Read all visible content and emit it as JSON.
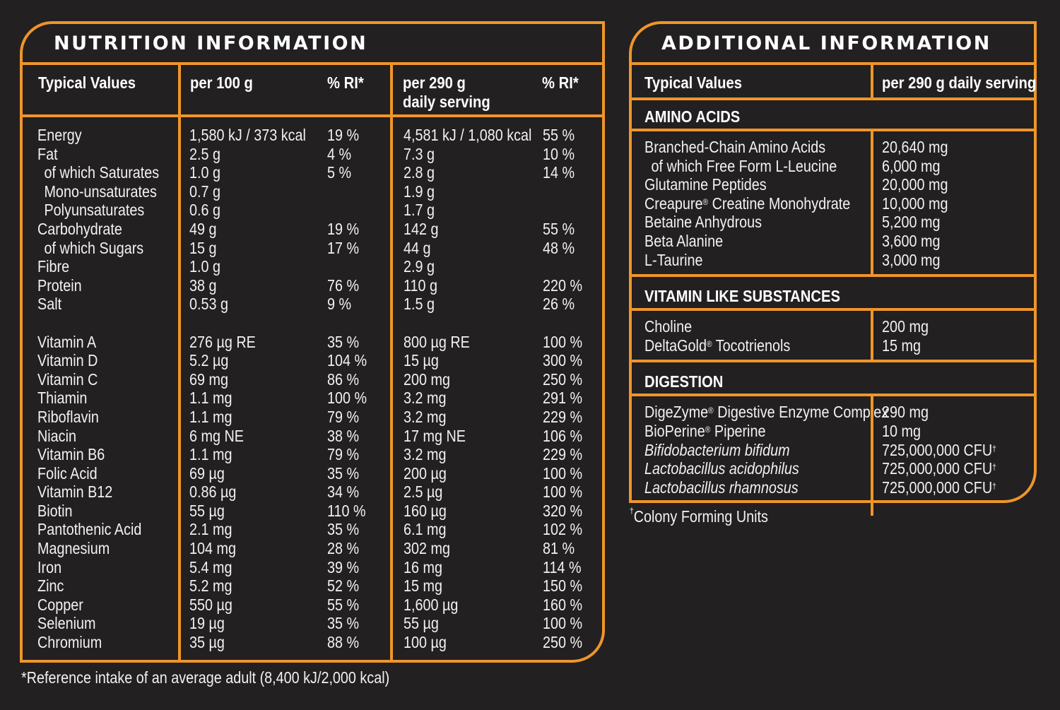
{
  "nutrition": {
    "title": "NUTRITION INFORMATION",
    "headers": {
      "typical": "Typical Values",
      "per100": "per 100 g",
      "ri1": "% RI*",
      "per290_line1": "per 290 g",
      "per290_line2": "daily serving",
      "ri2": "% RI*"
    },
    "rows": [
      {
        "name": "Energy",
        "indent": false,
        "per100": "1,580 kJ / 373 kcal",
        "ri100": "19 %",
        "per290": "4,581 kJ / 1,080 kcal",
        "ri290": "55 %"
      },
      {
        "name": "Fat",
        "indent": false,
        "per100": "2.5 g",
        "ri100": "4 %",
        "per290": "7.3 g",
        "ri290": "10 %"
      },
      {
        "name": "of which Saturates",
        "indent": true,
        "per100": "1.0 g",
        "ri100": "5 %",
        "per290": "2.8 g",
        "ri290": "14 %"
      },
      {
        "name": "Mono-unsaturates",
        "indent": true,
        "per100": "0.7 g",
        "ri100": "",
        "per290": "1.9 g",
        "ri290": ""
      },
      {
        "name": "Polyunsaturates",
        "indent": true,
        "per100": "0.6 g",
        "ri100": "",
        "per290": "1.7 g",
        "ri290": ""
      },
      {
        "name": "Carbohydrate",
        "indent": false,
        "per100": "49 g",
        "ri100": "19 %",
        "per290": "142 g",
        "ri290": "55 %"
      },
      {
        "name": "of which Sugars",
        "indent": true,
        "per100": "15 g",
        "ri100": "17 %",
        "per290": "44 g",
        "ri290": "48 %"
      },
      {
        "name": "Fibre",
        "indent": false,
        "per100": "1.0 g",
        "ri100": "",
        "per290": "2.9 g",
        "ri290": ""
      },
      {
        "name": "Protein",
        "indent": false,
        "per100": "38 g",
        "ri100": "76 %",
        "per290": "110 g",
        "ri290": "220 %"
      },
      {
        "name": "Salt",
        "indent": false,
        "per100": "0.53 g",
        "ri100": "9 %",
        "per290": "1.5 g",
        "ri290": "26 %"
      },
      {
        "gap": true
      },
      {
        "name": "Vitamin A",
        "indent": false,
        "per100": "276 µg RE",
        "ri100": "35 %",
        "per290": "800 µg RE",
        "ri290": "100 %"
      },
      {
        "name": "Vitamin D",
        "indent": false,
        "per100": "5.2 µg",
        "ri100": "104 %",
        "per290": "15 µg",
        "ri290": "300 %"
      },
      {
        "name": "Vitamin C",
        "indent": false,
        "per100": "69 mg",
        "ri100": "86 %",
        "per290": "200 mg",
        "ri290": "250 %"
      },
      {
        "name": "Thiamin",
        "indent": false,
        "per100": "1.1 mg",
        "ri100": "100 %",
        "per290": "3.2 mg",
        "ri290": "291 %"
      },
      {
        "name": "Riboflavin",
        "indent": false,
        "per100": "1.1 mg",
        "ri100": "79 %",
        "per290": "3.2 mg",
        "ri290": "229 %"
      },
      {
        "name": "Niacin",
        "indent": false,
        "per100": "6 mg NE",
        "ri100": "38 %",
        "per290": "17 mg NE",
        "ri290": "106 %"
      },
      {
        "name": "Vitamin B6",
        "indent": false,
        "per100": "1.1 mg",
        "ri100": "79 %",
        "per290": "3.2 mg",
        "ri290": "229 %"
      },
      {
        "name": "Folic Acid",
        "indent": false,
        "per100": "69 µg",
        "ri100": "35 %",
        "per290": "200 µg",
        "ri290": "100 %"
      },
      {
        "name": "Vitamin B12",
        "indent": false,
        "per100": "0.86 µg",
        "ri100": "34 %",
        "per290": "2.5 µg",
        "ri290": "100 %"
      },
      {
        "name": "Biotin",
        "indent": false,
        "per100": "55 µg",
        "ri100": "110 %",
        "per290": "160 µg",
        "ri290": "320 %"
      },
      {
        "name": "Pantothenic Acid",
        "indent": false,
        "per100": "2.1 mg",
        "ri100": "35 %",
        "per290": "6.1 mg",
        "ri290": "102 %"
      },
      {
        "name": "Magnesium",
        "indent": false,
        "per100": "104 mg",
        "ri100": "28 %",
        "per290": "302 mg",
        "ri290": "81 %"
      },
      {
        "name": "Iron",
        "indent": false,
        "per100": "5.4 mg",
        "ri100": "39 %",
        "per290": "16 mg",
        "ri290": "114 %"
      },
      {
        "name": "Zinc",
        "indent": false,
        "per100": "5.2 mg",
        "ri100": "52 %",
        "per290": "15 mg",
        "ri290": "150 %"
      },
      {
        "name": "Copper",
        "indent": false,
        "per100": "550 µg",
        "ri100": "55 %",
        "per290": "1,600 µg",
        "ri290": "160 %"
      },
      {
        "name": "Selenium",
        "indent": false,
        "per100": "19 µg",
        "ri100": "35 %",
        "per290": "55 µg",
        "ri290": "100 %"
      },
      {
        "name": "Chromium",
        "indent": false,
        "per100": "35 µg",
        "ri100": "88 %",
        "per290": "100 µg",
        "ri290": "250 %"
      }
    ],
    "footnote": "*Reference intake of an average adult (8,400 kJ/2,000 kcal)"
  },
  "additional": {
    "title": "ADDITIONAL INFORMATION",
    "headers": {
      "typical": "Typical Values",
      "per290": "per 290 g daily serving"
    },
    "sections": [
      {
        "title": "AMINO ACIDS",
        "items": [
          {
            "name": "Branched-Chain Amino Acids",
            "value": "20,640 mg",
            "indent": false,
            "italic": false,
            "reg": false
          },
          {
            "name": "of which Free Form L-Leucine",
            "value": "6,000 mg",
            "indent": true,
            "italic": false,
            "reg": false
          },
          {
            "name": "Glutamine Peptides",
            "value": "20,000 mg",
            "indent": false,
            "italic": false,
            "reg": false
          },
          {
            "name": "Creapure",
            "suffix": " Creatine Monohydrate",
            "value": "10,000 mg",
            "indent": false,
            "italic": false,
            "reg": true
          },
          {
            "name": "Betaine Anhydrous",
            "value": "5,200 mg",
            "indent": false,
            "italic": false,
            "reg": false
          },
          {
            "name": "Beta Alanine",
            "value": "3,600 mg",
            "indent": false,
            "italic": false,
            "reg": false
          },
          {
            "name": "L-Taurine",
            "value": "3,000 mg",
            "indent": false,
            "italic": false,
            "reg": false
          }
        ]
      },
      {
        "title": "VITAMIN LIKE SUBSTANCES",
        "items": [
          {
            "name": "Choline",
            "value": "200 mg",
            "indent": false,
            "italic": false,
            "reg": false
          },
          {
            "name": "DeltaGold",
            "suffix": " Tocotrienols",
            "value": "15 mg",
            "indent": false,
            "italic": false,
            "reg": true
          }
        ]
      },
      {
        "title": "DIGESTION",
        "items": [
          {
            "name": "DigeZyme",
            "suffix": " Digestive Enzyme Complex",
            "value": "290 mg",
            "indent": false,
            "italic": false,
            "reg": true
          },
          {
            "name": "BioPerine",
            "suffix": " Piperine",
            "value": "10 mg",
            "indent": false,
            "italic": false,
            "reg": true
          },
          {
            "name": "Bifidobacterium bifidum",
            "value": "725,000,000 CFU",
            "dagger": true,
            "indent": false,
            "italic": true,
            "reg": false
          },
          {
            "name": "Lactobacillus acidophilus",
            "value": "725,000,000 CFU",
            "dagger": true,
            "indent": false,
            "italic": true,
            "reg": false
          },
          {
            "name": "Lactobacillus rhamnosus",
            "value": "725,000,000 CFU",
            "dagger": true,
            "indent": false,
            "italic": true,
            "reg": false
          }
        ]
      }
    ],
    "footnote": "Colony Forming Units",
    "footnote_mark": "†",
    "reg_mark": "®",
    "dagger_mark": "†"
  },
  "colors": {
    "background": "#222021",
    "accent": "#f0952a",
    "text": "#f2f2f2"
  }
}
